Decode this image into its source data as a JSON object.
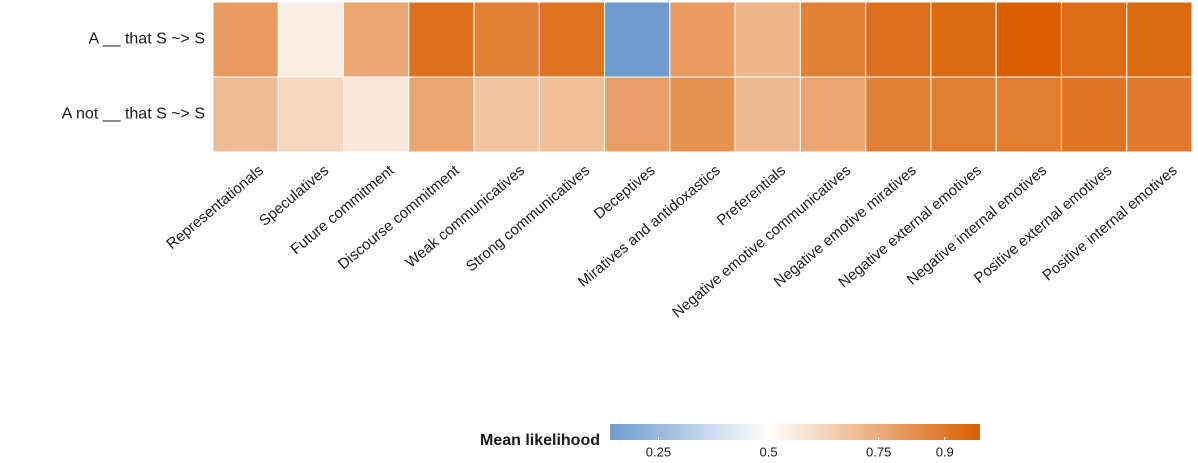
{
  "chart_data": {
    "type": "heatmap",
    "rows": [
      "A __ that S ~> S",
      "A not __ that S ~> S"
    ],
    "categories": [
      "Representationals",
      "Speculatives",
      "Future commitment",
      "Discourse commitment",
      "Weak communicatives",
      "Strong communicatives",
      "Deceptives",
      "Miratives and antidoxastics",
      "Preferentials",
      "Negative emotive communicatives",
      "Negative emotive miratives",
      "Negative external emotives",
      "Negative internal emotives",
      "Positive external emotives",
      "Positive internal emotives"
    ],
    "values": [
      [
        0.8,
        0.55,
        0.77,
        0.93,
        0.88,
        0.92,
        0.14,
        0.8,
        0.72,
        0.88,
        0.93,
        0.95,
        0.98,
        0.94,
        0.95
      ],
      [
        0.7,
        0.62,
        0.57,
        0.77,
        0.68,
        0.69,
        0.79,
        0.83,
        0.71,
        0.77,
        0.88,
        0.89,
        0.89,
        0.91,
        0.9
      ]
    ],
    "colorbar_title": "Mean likelihood",
    "clim": [
      0.14,
      0.98
    ],
    "cmid": 0.5,
    "color_low": "#6f9bcf",
    "color_mid": "#ffffff",
    "color_high": "#d95f02",
    "colorbar_ticks": [
      0.25,
      0.5,
      0.75,
      0.9
    ]
  }
}
